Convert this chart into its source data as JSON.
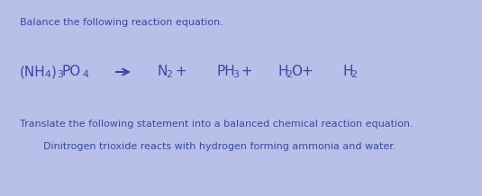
{
  "background_color": "#b8bfe8",
  "text_color": "#3a4a9c",
  "fig_width": 5.35,
  "fig_height": 2.18,
  "dpi": 100,
  "line1_text": "Balance the following reaction equation.",
  "line1_fontsize": 8.0,
  "eq_fontsize": 11.0,
  "line3_text": "Translate the following statement into a balanced chemical reaction equation.",
  "line3_fontsize": 8.0,
  "line4_text": "Dinitrogen trioxide reacts with hydrogen forming ammonia and water.",
  "line4_fontsize": 8.0
}
